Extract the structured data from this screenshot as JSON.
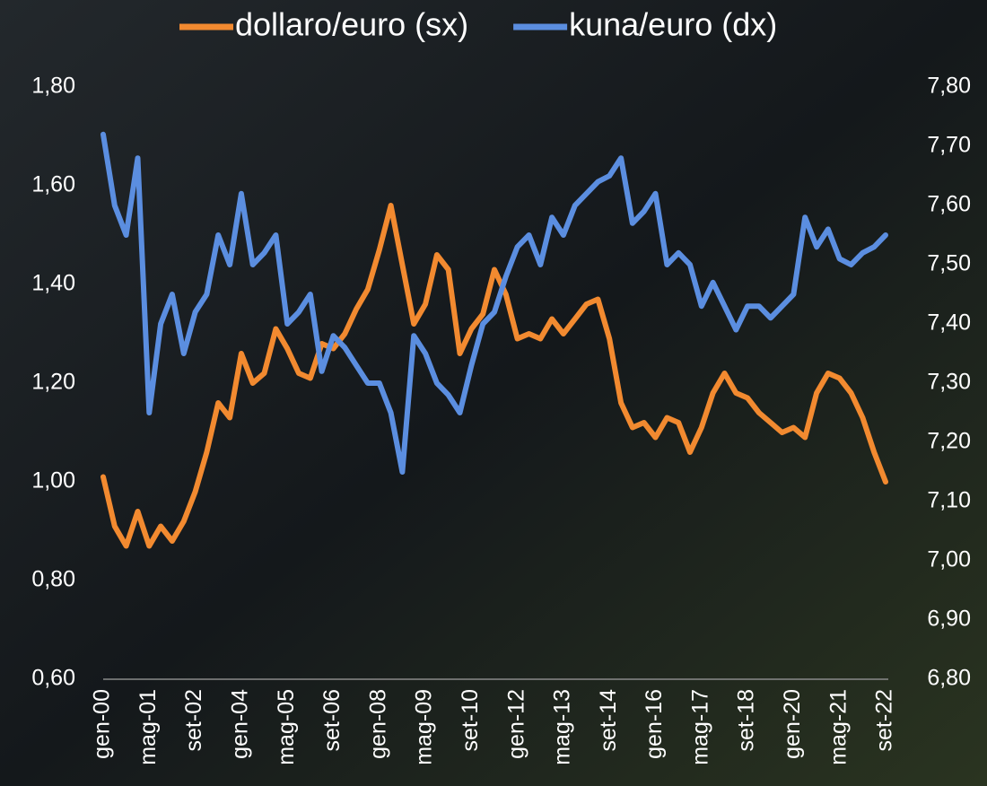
{
  "chart_data": {
    "type": "line",
    "categories": [
      "gen-00",
      null,
      null,
      null,
      "mag-01",
      null,
      null,
      null,
      "set-02",
      null,
      null,
      null,
      "gen-04",
      null,
      null,
      null,
      "mag-05",
      null,
      null,
      null,
      "set-06",
      null,
      null,
      null,
      "gen-08",
      null,
      null,
      null,
      "mag-09",
      null,
      null,
      null,
      "set-10",
      null,
      null,
      null,
      "gen-12",
      null,
      null,
      null,
      "mag-13",
      null,
      null,
      null,
      "set-14",
      null,
      null,
      null,
      "gen-16",
      null,
      null,
      null,
      "mag-17",
      null,
      null,
      null,
      "set-18",
      null,
      null,
      null,
      "gen-20",
      null,
      null,
      null,
      "mag-21",
      null,
      null,
      null,
      "set-22"
    ],
    "series": [
      {
        "name": "dollaro/euro (sx)",
        "color": "#f28a30",
        "axis": "y",
        "values": [
          1.01,
          0.91,
          0.87,
          0.94,
          0.87,
          0.91,
          0.88,
          0.92,
          0.98,
          1.06,
          1.16,
          1.13,
          1.26,
          1.2,
          1.22,
          1.31,
          1.27,
          1.22,
          1.21,
          1.28,
          1.27,
          1.3,
          1.35,
          1.39,
          1.47,
          1.56,
          1.44,
          1.32,
          1.36,
          1.46,
          1.43,
          1.26,
          1.31,
          1.34,
          1.43,
          1.38,
          1.29,
          1.3,
          1.29,
          1.33,
          1.3,
          1.33,
          1.36,
          1.37,
          1.29,
          1.16,
          1.11,
          1.12,
          1.09,
          1.13,
          1.12,
          1.06,
          1.11,
          1.18,
          1.22,
          1.18,
          1.17,
          1.14,
          1.12,
          1.1,
          1.11,
          1.09,
          1.18,
          1.22,
          1.21,
          1.18,
          1.13,
          1.06,
          1.0
        ]
      },
      {
        "name": "kuna/euro (dx)",
        "color": "#5b8ee0",
        "axis": "y2",
        "values": [
          7.72,
          7.6,
          7.55,
          7.68,
          7.25,
          7.4,
          7.45,
          7.35,
          7.42,
          7.45,
          7.55,
          7.5,
          7.62,
          7.5,
          7.52,
          7.55,
          7.4,
          7.42,
          7.45,
          7.32,
          7.38,
          7.36,
          7.33,
          7.3,
          7.3,
          7.25,
          7.15,
          7.38,
          7.35,
          7.3,
          7.28,
          7.25,
          7.33,
          7.4,
          7.42,
          7.48,
          7.53,
          7.55,
          7.5,
          7.58,
          7.55,
          7.6,
          7.62,
          7.64,
          7.65,
          7.68,
          7.57,
          7.59,
          7.62,
          7.5,
          7.52,
          7.5,
          7.43,
          7.47,
          7.43,
          7.39,
          7.43,
          7.43,
          7.41,
          7.43,
          7.45,
          7.58,
          7.53,
          7.56,
          7.51,
          7.5,
          7.52,
          7.53,
          7.55
        ]
      }
    ],
    "ylim": [
      0.6,
      1.8
    ],
    "yticks": [
      {
        "value": 0.6,
        "label": "0,60"
      },
      {
        "value": 0.8,
        "label": "0,80"
      },
      {
        "value": 1.0,
        "label": "1,00"
      },
      {
        "value": 1.2,
        "label": "1,20"
      },
      {
        "value": 1.4,
        "label": "1,40"
      },
      {
        "value": 1.6,
        "label": "1,60"
      },
      {
        "value": 1.8,
        "label": "1,80"
      }
    ],
    "y2lim": [
      6.8,
      7.8
    ],
    "y2ticks": [
      {
        "value": 6.8,
        "label": "6,80"
      },
      {
        "value": 6.9,
        "label": "6,90"
      },
      {
        "value": 7.0,
        "label": "7,00"
      },
      {
        "value": 7.1,
        "label": "7,10"
      },
      {
        "value": 7.2,
        "label": "7,20"
      },
      {
        "value": 7.3,
        "label": "7,30"
      },
      {
        "value": 7.4,
        "label": "7,40"
      },
      {
        "value": 7.5,
        "label": "7,50"
      },
      {
        "value": 7.6,
        "label": "7,60"
      },
      {
        "value": 7.7,
        "label": "7,70"
      },
      {
        "value": 7.8,
        "label": "7,80"
      }
    ],
    "legend": "top"
  }
}
